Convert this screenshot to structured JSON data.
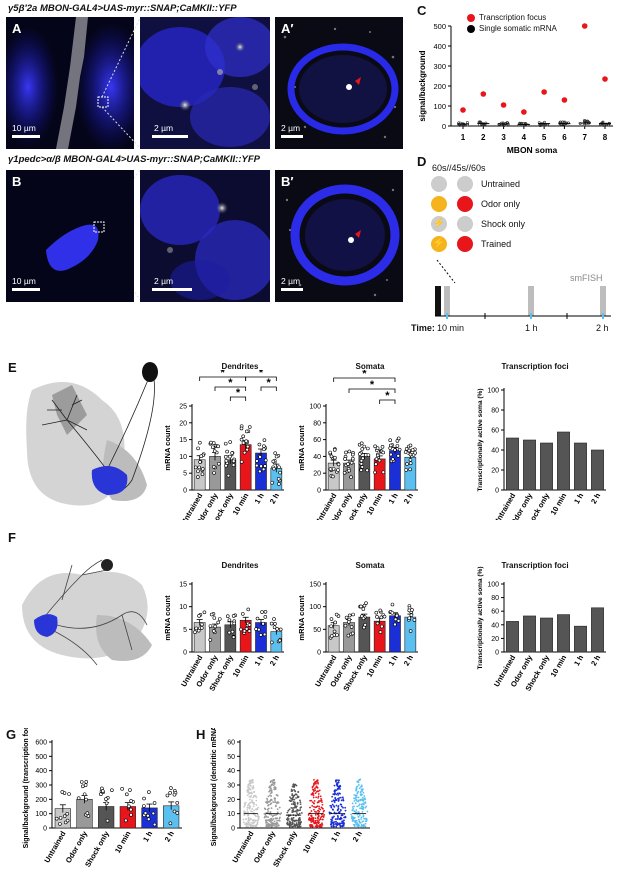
{
  "genotype_a": "γ5β′2a MBON-GAL4>UAS-myr::SNAP;CaMKII::YFP",
  "genotype_b": "γ1pedc>α/β MBON-GAL4>UAS-myr::SNAP;CaMKII::YFP",
  "panels": {
    "A": "A",
    "A_prime": "A′",
    "B": "B",
    "B_prime": "B′",
    "C": "C",
    "D": "D",
    "E": "E",
    "F": "F",
    "G": "G",
    "H": "H"
  },
  "scalebars": {
    "s10": "10 µm",
    "s2": "2 µm"
  },
  "colors": {
    "untrained": "#c8c8c8",
    "odor_only": "#999999",
    "shock_only": "#555555",
    "t10min": "#e8151b",
    "t1h": "#1a2fd6",
    "t2h": "#5bc0f0",
    "focus": "#e8151b"
  },
  "panel_c": {
    "legend": [
      "Transcription focus",
      "Single somatic mRNA"
    ],
    "ylabel": "signal/background",
    "xlabel": "MBON soma",
    "yticks": [
      "0",
      "100",
      "200",
      "300",
      "400",
      "500"
    ],
    "xticks": [
      "1",
      "2",
      "3",
      "4",
      "5",
      "6",
      "7",
      "8"
    ]
  },
  "panel_d": {
    "protocol": "60s//45s//60s",
    "rows": [
      {
        "label": "Untrained",
        "icon_color": "#cccccc",
        "state_color": "#cccccc",
        "icon": ""
      },
      {
        "label": "Odor only",
        "icon_color": "#f5b41e",
        "state_color": "#e8151b",
        "icon": ""
      },
      {
        "label": "Shock only",
        "icon_color": "#cccccc",
        "state_color": "#cccccc",
        "icon": "⚡"
      },
      {
        "label": "Trained",
        "icon_color": "#f5b41e",
        "state_color": "#e8151b",
        "icon": "⚡"
      }
    ],
    "smfish": "smFISH",
    "time_label": "Time:",
    "times": [
      "10 min",
      "1 h",
      "2 h"
    ]
  },
  "row_titles": {
    "dendrites": "Dendrites",
    "somata": "Somata",
    "foci": "Transcription foci"
  },
  "ylabels": {
    "mrna": "mRNA count",
    "active": "Transcriptionally active soma (%)",
    "g": "Signal/background (transcription foci)",
    "h": "Signal/background (dendritic mRNA)"
  },
  "conditions": [
    "Untrained",
    "Odor only",
    "Shock only",
    "10 min",
    "1 h",
    "2 h"
  ],
  "sig": "*",
  "axes": {
    "e_dend": [
      "0",
      "5",
      "10",
      "15",
      "20",
      "25"
    ],
    "e_soma": [
      "0",
      "20",
      "40",
      "60",
      "80",
      "100"
    ],
    "pct": [
      "0",
      "20",
      "40",
      "60",
      "80",
      "100"
    ],
    "f_dend": [
      "0",
      "5",
      "10",
      "15"
    ],
    "f_soma": [
      "0",
      "50",
      "100",
      "150"
    ],
    "g": [
      "0",
      "100",
      "200",
      "300",
      "400",
      "500",
      "600"
    ],
    "h": [
      "0",
      "10",
      "20",
      "30",
      "40",
      "50",
      "60"
    ]
  },
  "chart_data": [
    {
      "type": "scatter",
      "panel": "C",
      "xlabel": "MBON soma",
      "ylabel": "signal/background",
      "ylim": [
        0,
        500
      ],
      "series": [
        {
          "name": "Transcription focus",
          "x": [
            1,
            2,
            3,
            4,
            5,
            6,
            7,
            8
          ],
          "values": [
            80,
            160,
            105,
            70,
            170,
            130,
            500,
            235
          ]
        },
        {
          "name": "Single somatic mRNA",
          "x": [
            1,
            2,
            3,
            4,
            5,
            6,
            7,
            8
          ],
          "values": [
            10,
            12,
            10,
            8,
            12,
            12,
            15,
            12
          ]
        }
      ]
    },
    {
      "type": "bar",
      "panel": "E",
      "title": "Dendrites",
      "ylabel": "mRNA count",
      "ylim": [
        0,
        25
      ],
      "categories": [
        "Untrained",
        "Odor only",
        "Shock only",
        "10 min",
        "1 h",
        "2 h"
      ],
      "values": [
        9,
        10,
        9,
        13.5,
        11,
        6.5
      ]
    },
    {
      "type": "bar",
      "panel": "E",
      "title": "Somata",
      "ylabel": "mRNA count",
      "ylim": [
        0,
        100
      ],
      "categories": [
        "Untrained",
        "Odor only",
        "Shock only",
        "10 min",
        "1 h",
        "2 h"
      ],
      "values": [
        32,
        32,
        40,
        37,
        47,
        39
      ]
    },
    {
      "type": "bar",
      "panel": "E",
      "title": "Transcription foci",
      "ylabel": "Transcriptionally active soma (%)",
      "ylim": [
        0,
        100
      ],
      "categories": [
        "Untrained",
        "Odor only",
        "Shock only",
        "10 min",
        "1 h",
        "2 h"
      ],
      "values": [
        52,
        50,
        47,
        58,
        47,
        40
      ]
    },
    {
      "type": "bar",
      "panel": "F",
      "title": "Dendrites",
      "ylabel": "mRNA count",
      "ylim": [
        0,
        15
      ],
      "categories": [
        "Untrained",
        "Odor only",
        "Shock only",
        "10 min",
        "1 h",
        "2 h"
      ],
      "values": [
        6.5,
        5.5,
        6,
        7,
        6.5,
        4.5
      ]
    },
    {
      "type": "bar",
      "panel": "F",
      "title": "Somata",
      "ylabel": "mRNA count",
      "ylim": [
        0,
        150
      ],
      "categories": [
        "Untrained",
        "Odor only",
        "Shock only",
        "10 min",
        "1 h",
        "2 h"
      ],
      "values": [
        58,
        65,
        77,
        68,
        80,
        77
      ]
    },
    {
      "type": "bar",
      "panel": "F",
      "title": "Transcription foci",
      "ylabel": "Transcriptionally active soma (%)",
      "ylim": [
        0,
        100
      ],
      "categories": [
        "Untrained",
        "Odor only",
        "Shock only",
        "10 min",
        "1 h",
        "2 h"
      ],
      "values": [
        45,
        53,
        50,
        55,
        38,
        65
      ]
    },
    {
      "type": "bar",
      "panel": "G",
      "ylabel": "Signal/background (transcription foci)",
      "ylim": [
        0,
        600
      ],
      "categories": [
        "Untrained",
        "Odor only",
        "Shock only",
        "10 min",
        "1 h",
        "2 h"
      ],
      "values": [
        135,
        200,
        150,
        150,
        140,
        155
      ]
    },
    {
      "type": "scatter",
      "panel": "H",
      "ylabel": "Signal/background (dendritic mRNA)",
      "ylim": [
        0,
        60
      ],
      "categories": [
        "Untrained",
        "Odor only",
        "Shock only",
        "10 min",
        "1 h",
        "2 h"
      ],
      "values": [
        10,
        10,
        9,
        10,
        10,
        10
      ]
    }
  ]
}
